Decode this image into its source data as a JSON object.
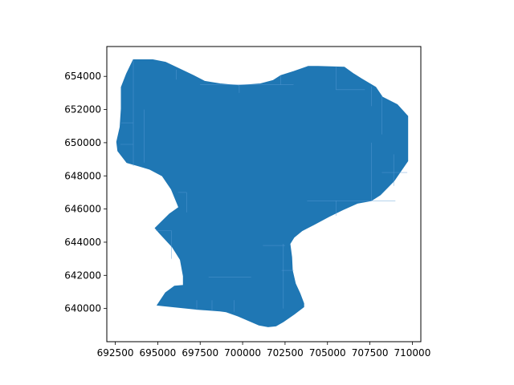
{
  "chart_data": {
    "type": "choropleth-map",
    "title": "",
    "xlabel": "",
    "ylabel": "",
    "xlim": [
      692000,
      710500
    ],
    "ylim": [
      638000,
      655800
    ],
    "x_ticks": [
      692500,
      695000,
      697500,
      700000,
      702500,
      705000,
      707500,
      710000
    ],
    "x_tick_labels": [
      "692500",
      "695000",
      "697500",
      "700000",
      "702500",
      "705000",
      "707500",
      "710000"
    ],
    "y_ticks": [
      640000,
      642000,
      644000,
      646000,
      648000,
      650000,
      652000,
      654000
    ],
    "y_tick_labels": [
      "640000",
      "642000",
      "644000",
      "646000",
      "648000",
      "650000",
      "652000",
      "654000"
    ],
    "grid": false,
    "region_fill_color": "#1f77b4",
    "boundary_line_color": "#5a9bd5",
    "outline": [
      [
        693560,
        655000
      ],
      [
        694710,
        655000
      ],
      [
        695460,
        654850
      ],
      [
        696390,
        654400
      ],
      [
        697110,
        654050
      ],
      [
        697770,
        653700
      ],
      [
        698670,
        653550
      ],
      [
        699750,
        653450
      ],
      [
        701050,
        653550
      ],
      [
        701790,
        653750
      ],
      [
        702250,
        654050
      ],
      [
        703030,
        654300
      ],
      [
        703860,
        654600
      ],
      [
        704450,
        654600
      ],
      [
        705990,
        654550
      ],
      [
        706540,
        654150
      ],
      [
        707010,
        653850
      ],
      [
        707840,
        653350
      ],
      [
        708240,
        652750
      ],
      [
        709110,
        652300
      ],
      [
        709730,
        651600
      ],
      [
        709730,
        648900
      ],
      [
        708920,
        647700
      ],
      [
        708110,
        646850
      ],
      [
        707570,
        646500
      ],
      [
        706760,
        646350
      ],
      [
        705900,
        645950
      ],
      [
        705090,
        645550
      ],
      [
        704190,
        645050
      ],
      [
        703510,
        644700
      ],
      [
        703030,
        644300
      ],
      [
        702790,
        643900
      ],
      [
        702890,
        643100
      ],
      [
        702930,
        642300
      ],
      [
        703110,
        641500
      ],
      [
        703380,
        640900
      ],
      [
        703600,
        640300
      ],
      [
        703600,
        640100
      ],
      [
        703030,
        639650
      ],
      [
        702390,
        639200
      ],
      [
        701960,
        638950
      ],
      [
        701500,
        638900
      ],
      [
        700960,
        639000
      ],
      [
        700280,
        639300
      ],
      [
        699730,
        639550
      ],
      [
        699030,
        639800
      ],
      [
        698670,
        639850
      ],
      [
        697380,
        639950
      ],
      [
        694970,
        640200
      ],
      [
        695460,
        640950
      ],
      [
        695990,
        641350
      ],
      [
        696510,
        641400
      ],
      [
        696510,
        641950
      ],
      [
        696330,
        642950
      ],
      [
        695870,
        643700
      ],
      [
        695100,
        644550
      ],
      [
        694850,
        644850
      ],
      [
        695690,
        645700
      ],
      [
        696240,
        646100
      ],
      [
        695800,
        647200
      ],
      [
        695270,
        648000
      ],
      [
        694530,
        648400
      ],
      [
        693880,
        648600
      ],
      [
        693180,
        648800
      ],
      [
        692650,
        649500
      ],
      [
        692580,
        650050
      ],
      [
        692780,
        650950
      ],
      [
        692850,
        652050
      ],
      [
        692850,
        652850
      ],
      [
        692850,
        653350
      ],
      [
        693160,
        654150
      ]
    ],
    "internal_boundaries": [
      [
        [
          693560,
          655000
        ],
        [
          693560,
          648600
        ]
      ],
      [
        [
          694200,
          652000
        ],
        [
          694200,
          648800
        ]
      ],
      [
        [
          692850,
          651200
        ],
        [
          693560,
          651200
        ]
      ],
      [
        [
          692800,
          649900
        ],
        [
          693560,
          649900
        ]
      ],
      [
        [
          696100,
          654400
        ],
        [
          696100,
          653800
        ]
      ],
      [
        [
          697500,
          653500
        ],
        [
          703000,
          653500
        ]
      ],
      [
        [
          699800,
          653450
        ],
        [
          699800,
          653000
        ]
      ],
      [
        [
          702250,
          654050
        ],
        [
          702250,
          653500
        ]
      ],
      [
        [
          705500,
          654600
        ],
        [
          705500,
          653200
        ]
      ],
      [
        [
          705500,
          653200
        ],
        [
          707200,
          653200
        ]
      ],
      [
        [
          707600,
          653400
        ],
        [
          707600,
          652200
        ]
      ],
      [
        [
          708200,
          652800
        ],
        [
          708200,
          650500
        ]
      ],
      [
        [
          708200,
          648200
        ],
        [
          709700,
          648200
        ]
      ],
      [
        [
          708900,
          649300
        ],
        [
          708900,
          647400
        ]
      ],
      [
        [
          703800,
          646500
        ],
        [
          709000,
          646500
        ]
      ],
      [
        [
          705500,
          646500
        ],
        [
          705500,
          645600
        ]
      ],
      [
        [
          707600,
          650000
        ],
        [
          707600,
          646500
        ]
      ],
      [
        [
          696200,
          647000
        ],
        [
          696700,
          647000
        ]
      ],
      [
        [
          696700,
          647000
        ],
        [
          696700,
          645800
        ]
      ],
      [
        [
          694900,
          644700
        ],
        [
          695800,
          644700
        ]
      ],
      [
        [
          695800,
          644700
        ],
        [
          695800,
          643000
        ]
      ],
      [
        [
          702400,
          643900
        ],
        [
          702400,
          640000
        ]
      ],
      [
        [
          702300,
          642300
        ],
        [
          703000,
          642300
        ]
      ],
      [
        [
          701200,
          643800
        ],
        [
          702500,
          643800
        ]
      ],
      [
        [
          697300,
          640500
        ],
        [
          697300,
          639900
        ]
      ],
      [
        [
          698200,
          640500
        ],
        [
          698200,
          639850
        ]
      ],
      [
        [
          699500,
          640500
        ],
        [
          699500,
          639800
        ]
      ],
      [
        [
          698000,
          641900
        ],
        [
          700500,
          641900
        ]
      ]
    ]
  }
}
